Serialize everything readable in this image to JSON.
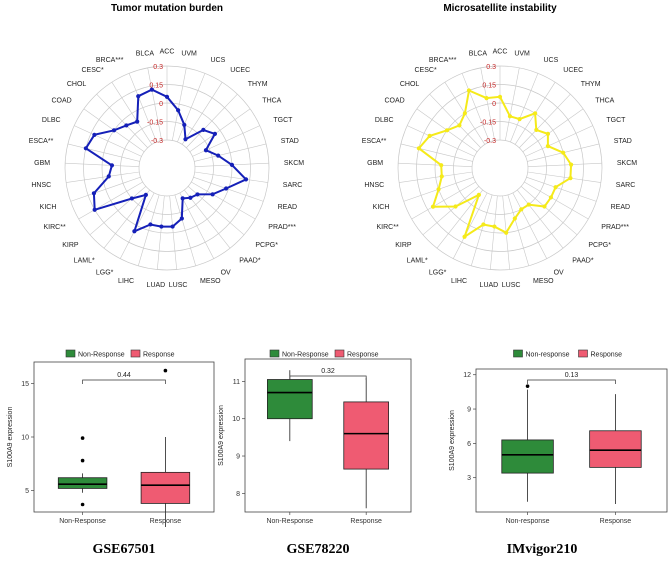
{
  "colors": {
    "tmb_line": "#1520b8",
    "msi_line": "#f5ea1a",
    "non_response": "#2e8b3a",
    "response": "#ef5b72",
    "ring": "#c8c8c8",
    "ring_label": "#c62828"
  },
  "chart_data": [
    {
      "type": "radar",
      "title": "Tumor mutation burden",
      "categories": [
        "ACC",
        "UVM",
        "UCS",
        "UCEC",
        "THYM",
        "THCA",
        "TGCT",
        "STAD",
        "SKCM",
        "SARC",
        "READ",
        "PRAD***",
        "PCPG*",
        "PAAD*",
        "OV",
        "MESO",
        "LUSC",
        "LUAD",
        "LIHC",
        "LGG*",
        "LAML*",
        "KIRP",
        "KIRC**",
        "KICH",
        "HNSC",
        "GBM",
        "ESCA**",
        "DLBC",
        "COAD",
        "CHOL",
        "CESC*",
        "BRCA***",
        "BLCA"
      ],
      "ring_labels": [
        "0.3",
        "0.15",
        "0",
        "-0.15",
        "-0.3"
      ],
      "rlim": [
        -0.3,
        0.3
      ],
      "values": [
        0.05,
        -0.05,
        -0.15,
        -0.25,
        -0.1,
        -0.05,
        -0.18,
        -0.1,
        0.0,
        0.12,
        -0.02,
        -0.1,
        -0.2,
        -0.22,
        -0.25,
        -0.1,
        -0.05,
        -0.05,
        -0.05,
        0.05,
        -0.25,
        -0.15,
        0.15,
        0.1,
        -0.05,
        -0.08,
        0.15,
        0.12,
        0.0,
        -0.05,
        -0.08,
        0.1,
        0.12
      ]
    },
    {
      "type": "radar",
      "title": "Microsatellite instability",
      "categories": [
        "ACC",
        "UVM",
        "UCS",
        "UCEC",
        "THYM",
        "THCA",
        "TGCT",
        "STAD",
        "SKCM",
        "SARC",
        "READ",
        "PRAD***",
        "PCPG*",
        "PAAD*",
        "OV",
        "MESO",
        "LUSC",
        "LUAD",
        "LIHC",
        "LGG*",
        "LAML*",
        "KIRP",
        "KIRC**",
        "KICH",
        "HNSC",
        "GBM",
        "ESCA**",
        "DLBC",
        "COAD",
        "CHOL",
        "CESC*",
        "BRCA***",
        "BLCA"
      ],
      "ring_labels": [
        "0.3",
        "0.15",
        "0",
        "-0.15",
        "-0.3"
      ],
      "rlim": [
        -0.3,
        0.3
      ],
      "values": [
        0.05,
        -0.1,
        -0.1,
        0.0,
        -0.1,
        -0.05,
        -0.1,
        0.0,
        0.05,
        0.05,
        -0.05,
        -0.05,
        -0.05,
        -0.15,
        -0.15,
        -0.1,
        0.0,
        -0.05,
        -0.05,
        0.1,
        -0.25,
        -0.05,
        0.1,
        0.0,
        -0.05,
        -0.05,
        0.15,
        0.1,
        0.0,
        -0.05,
        0.0,
        0.15,
        0.05
      ]
    },
    {
      "type": "boxplot",
      "dataset": "GSE67501",
      "legend": [
        "Non-Response",
        "Response"
      ],
      "categories": [
        "Non-Response",
        "Response"
      ],
      "ylabel": "S100A9 expression",
      "ylim": [
        3,
        17
      ],
      "yticks": [
        5,
        10,
        15
      ],
      "p_value": "0.44",
      "boxes": [
        {
          "q1": 5.2,
          "median": 5.6,
          "q3": 6.2,
          "whisker_low": 4.8,
          "whisker_high": 6.6,
          "outliers": [
            3.7,
            7.8,
            9.9
          ]
        },
        {
          "q1": 3.8,
          "median": 5.5,
          "q3": 6.7,
          "whisker_low": 1.6,
          "whisker_high": 10.0,
          "outliers": [
            16.2
          ]
        }
      ]
    },
    {
      "type": "boxplot",
      "dataset": "GSE78220",
      "legend": [
        "Non-Response",
        "Response"
      ],
      "categories": [
        "Non-Response",
        "Response"
      ],
      "ylabel": "S100A9 expression",
      "ylim": [
        7.5,
        11.6
      ],
      "yticks": [
        8,
        9,
        10,
        11
      ],
      "p_value": "0.32",
      "boxes": [
        {
          "q1": 10.0,
          "median": 10.7,
          "q3": 11.05,
          "whisker_low": 9.4,
          "whisker_high": 11.3,
          "outliers": []
        },
        {
          "q1": 8.65,
          "median": 9.6,
          "q3": 10.45,
          "whisker_low": 7.6,
          "whisker_high": 11.1,
          "outliers": []
        }
      ]
    },
    {
      "type": "boxplot",
      "dataset": "IMvigor210",
      "legend": [
        "Non-response",
        "Response"
      ],
      "categories": [
        "Non-response",
        "Response"
      ],
      "ylabel": "S100A9 expression",
      "ylim": [
        0,
        12.5
      ],
      "yticks": [
        3,
        6,
        9,
        12
      ],
      "p_value": "0.13",
      "boxes": [
        {
          "q1": 3.4,
          "median": 5.0,
          "q3": 6.3,
          "whisker_low": 0.9,
          "whisker_high": 10.7,
          "outliers": [
            11.0
          ]
        },
        {
          "q1": 3.9,
          "median": 5.4,
          "q3": 7.1,
          "whisker_low": 0.7,
          "whisker_high": 10.3,
          "outliers": []
        }
      ]
    }
  ]
}
